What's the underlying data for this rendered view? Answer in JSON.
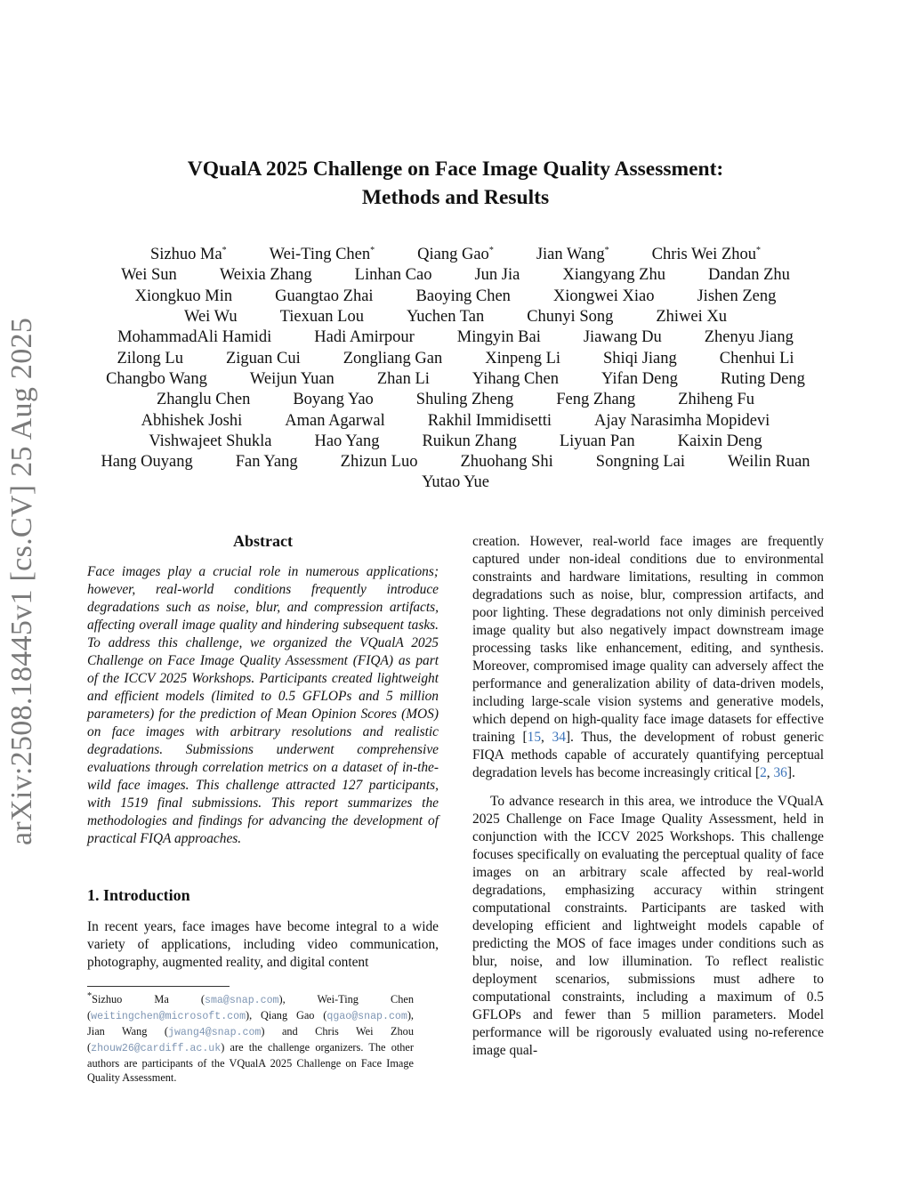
{
  "arxiv_stamp": "arXiv:2508.18445v1  [cs.CV]  25 Aug 2025",
  "title": [
    "VQualA 2025 Challenge on Face Image Quality Assessment:",
    "Methods and Results"
  ],
  "authors": [
    [
      "Sizhuo Ma*",
      "Wei-Ting Chen*",
      "Qiang Gao*",
      "Jian Wang*",
      "Chris Wei Zhou*"
    ],
    [
      "Wei Sun",
      "Weixia Zhang",
      "Linhan Cao",
      "Jun Jia",
      "Xiangyang Zhu",
      "Dandan Zhu"
    ],
    [
      "Xiongkuo Min",
      "Guangtao Zhai",
      "Baoying Chen",
      "Xiongwei Xiao",
      "Jishen Zeng"
    ],
    [
      "Wei Wu",
      "Tiexuan Lou",
      "Yuchen Tan",
      "Chunyi Song",
      "Zhiwei Xu"
    ],
    [
      "MohammadAli Hamidi",
      "Hadi Amirpour",
      "Mingyin Bai",
      "Jiawang Du",
      "Zhenyu Jiang"
    ],
    [
      "Zilong Lu",
      "Ziguan Cui",
      "Zongliang Gan",
      "Xinpeng Li",
      "Shiqi Jiang",
      "Chenhui Li"
    ],
    [
      "Changbo Wang",
      "Weijun Yuan",
      "Zhan Li",
      "Yihang Chen",
      "Yifan Deng",
      "Ruting Deng"
    ],
    [
      "Zhanglu Chen",
      "Boyang Yao",
      "Shuling Zheng",
      "Feng Zhang",
      "Zhiheng Fu"
    ],
    [
      "Abhishek Joshi",
      "Aman Agarwal",
      "Rakhil Immidisetti",
      "Ajay Narasimha Mopidevi"
    ],
    [
      "Vishwajeet Shukla",
      "Hao Yang",
      "Ruikun Zhang",
      "Liyuan Pan",
      "Kaixin Deng"
    ],
    [
      "Hang Ouyang",
      "Fan Yang",
      "Zhizun Luo",
      "Zhuohang Shi",
      "Songning Lai",
      "Weilin Ruan"
    ],
    [
      "Yutao Yue"
    ]
  ],
  "abstract": {
    "heading": "Abstract",
    "text": "Face images play a crucial role in numerous applications; however, real-world conditions frequently introduce degradations such as noise, blur, and compression artifacts, affecting overall image quality and hindering subsequent tasks. To address this challenge, we organized the VQualA 2025 Challenge on Face Image Quality Assessment (FIQA) as part of the ICCV 2025 Workshops. Participants created lightweight and efficient models (limited to 0.5 GFLOPs and 5 million parameters) for the prediction of Mean Opinion Scores (MOS) on face images with arbitrary resolutions and realistic degradations. Submissions underwent comprehensive evaluations through correlation metrics on a dataset of in-the-wild face images. This challenge attracted 127 participants, with 1519 final submissions. This report summarizes the methodologies and findings for advancing the development of practical FIQA approaches."
  },
  "intro": {
    "heading": "1. Introduction",
    "p1": "In recent years, face images have become integral to a wide variety of applications, including video communication, photography, augmented reality, and digital content"
  },
  "right": {
    "p1a": "creation. However, real-world face images are frequently captured under non-ideal conditions due to environmental constraints and hardware limitations, resulting in common degradations such as noise, blur, compression artifacts, and poor lighting. These degradations not only diminish perceived image quality but also negatively impact downstream image processing tasks like enhancement, editing, and synthesis. Moreover, compromised image quality can adversely affect the performance and generalization ability of data-driven models, including large-scale vision systems and generative models, which depend on high-quality face image datasets for effective training [",
    "cite1": "15",
    "sep1": ", ",
    "cite2": "34",
    "p1b": "]. Thus, the development of robust generic FIQA methods capable of accurately quantifying perceptual degradation levels has become increasingly critical [",
    "cite3": "2",
    "sep2": ", ",
    "cite4": "36",
    "p1c": "].",
    "p2": "To advance research in this area, we introduce the VQualA 2025 Challenge on Face Image Quality Assessment, held in conjunction with the ICCV 2025 Workshops. This challenge focuses specifically on evaluating the perceptual quality of face images on an arbitrary scale affected by real-world degradations, emphasizing accuracy within stringent computational constraints. Participants are tasked with developing efficient and lightweight models capable of predicting the MOS of face images under conditions such as blur, noise, and low illumination. To reflect realistic deployment scenarios, submissions must adhere to computational constraints, including a maximum of 0.5 GFLOPs and fewer than 5 million parameters. Model performance will be rigorously evaluated using no-reference image qual-"
  },
  "footnote": {
    "mark": "*",
    "n1": "Sizhuo Ma (",
    "e1": "sma@snap.com",
    "n2": "), Wei-Ting Chen (",
    "e2": "weitingchen@microsoft.com",
    "n3": "), Qiang Gao (",
    "e3": "qgao@snap.com",
    "n4": "), Jian Wang (",
    "e4": "jwang4@snap.com",
    "n5": ") and Chris Wei Zhou (",
    "e5": "zhouw26@cardiff.ac.uk",
    "n6": ") are the challenge organizers. The other authors are participants of the VQualA 2025 Challenge on Face Image Quality Assessment."
  },
  "colors": {
    "link": "#3b73b9",
    "email": "#7e95b3",
    "stamp": "#7a7a7a"
  }
}
